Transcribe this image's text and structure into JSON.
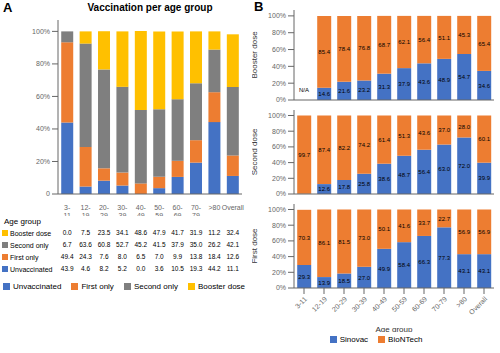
{
  "chart_data": [
    {
      "type": "bar",
      "stacked": true,
      "panel": "A",
      "title": "Vaccination per age group",
      "xlabel": "Age group",
      "categories": [
        "3-\n11",
        "12-\n19",
        "20-\n29",
        "30-\n39",
        "40-\n49",
        "50-\n59",
        "60-\n69",
        "70-\n79",
        ">80",
        "Overall"
      ],
      "series": [
        {
          "name": "Unvaccinated",
          "color": "#4472C4",
          "values": [
            43.9,
            4.6,
            8.2,
            5.2,
            0.0,
            3.6,
            10.5,
            19.3,
            44.2,
            11.1
          ]
        },
        {
          "name": "First only",
          "color": "#ED7D31",
          "values": [
            49.4,
            24.3,
            7.6,
            8.0,
            6.5,
            7.0,
            9.9,
            13.8,
            18.4,
            12.6
          ]
        },
        {
          "name": "Second only",
          "color": "#7F7F7F",
          "values": [
            6.7,
            63.6,
            60.8,
            52.7,
            45.2,
            41.5,
            37.9,
            35.0,
            26.2,
            42.1
          ]
        },
        {
          "name": "Booster dose",
          "color": "#FFC000",
          "values": [
            0.0,
            7.5,
            23.5,
            34.1,
            48.6,
            47.9,
            41.7,
            31.9,
            11.2,
            32.4
          ]
        }
      ],
      "ylim": [
        0,
        107
      ],
      "yticks": [
        0,
        {
          "value": 20,
          "label": "20%"
        },
        {
          "value": 40,
          "label": "40%"
        },
        {
          "value": 60,
          "label": "60%"
        },
        {
          "value": 80,
          "label": "80%"
        },
        {
          "value": 100,
          "label": "100%"
        }
      ],
      "grid": false,
      "legend": "bottom",
      "table": {
        "rows": [
          {
            "name": "Booster dose",
            "values": [
              0.0,
              7.5,
              23.5,
              34.1,
              48.6,
              47.9,
              41.7,
              31.9,
              11.2,
              32.4
            ],
            "value_labels": [
              "0.0",
              "7.5",
              "23.5",
              "34.1",
              "48.6",
              "47.9",
              "41.7",
              "31.9",
              "11.2",
              "32.4"
            ]
          },
          {
            "name": "Second only",
            "values": [
              6.7,
              63.6,
              60.8,
              52.7,
              45.2,
              41.5,
              37.9,
              35.0,
              26.2,
              42.1
            ],
            "value_labels": [
              "6.7",
              "63.6",
              "60.8",
              "52.7",
              "45.2",
              "41.5",
              "37.9",
              "35.0",
              "26.2",
              "42.1"
            ]
          },
          {
            "name": "First only",
            "values": [
              49.4,
              24.3,
              7.6,
              8.0,
              6.5,
              7.0,
              9.9,
              13.8,
              18.4,
              12.6
            ],
            "value_labels": [
              "49.4",
              "24.3",
              "7.6",
              "8.0",
              "6.5",
              "7.0",
              "9.9",
              "13.8",
              "18.4",
              "12.6"
            ]
          },
          {
            "name": "Unvaccinated",
            "values": [
              43.9,
              4.6,
              8.2,
              5.2,
              0.0,
              3.6,
              10.5,
              19.3,
              44.2,
              11.1
            ],
            "value_labels": [
              "43.9",
              "4.6",
              "8.2",
              "5.2",
              "0.0",
              "3.6",
              "10.5",
              "19.3",
              "44.2",
              "11.1"
            ]
          }
        ]
      }
    },
    {
      "type": "bar",
      "stacked": true,
      "panel": "B",
      "ylabel": "Booster dose",
      "tick_labels": "y",
      "data_labels": true,
      "categories": [
        "3-11",
        "12-19",
        "20-29",
        "30-39",
        "40-49",
        "50-59",
        "60-69",
        "70-79",
        ">80",
        "Overall"
      ],
      "series": [
        {
          "color": "#4472C4",
          "values": [
            0.0,
            14.6,
            21.6,
            23.2,
            31.3,
            37.9,
            43.6,
            48.9,
            54.7,
            34.6
          ],
          "value_labels": [
            null,
            "14.6",
            "21.6",
            "23.2",
            "31.3",
            "37.9",
            "43.6",
            "48.9",
            "54.7",
            "34.6"
          ]
        },
        {
          "color": "#ED7D31",
          "values": [
            0.0,
            85.4,
            78.4,
            76.8,
            68.7,
            62.1,
            56.4,
            51.1,
            45.3,
            65.4
          ],
          "value_labels": [
            null,
            "85.4",
            "78.4",
            "76.8",
            "68.7",
            "62.1",
            "56.4",
            "51.1",
            "45.3",
            "65.4"
          ]
        }
      ],
      "annotations": [
        {
          "text": "N/A",
          "x": "3-11",
          "y": 3
        }
      ],
      "ylim": [
        0,
        107
      ],
      "yticks": [
        {
          "value": 0,
          "label": "0%"
        },
        {
          "value": 20,
          "label": "20%"
        },
        {
          "value": 40,
          "label": "40%"
        },
        {
          "value": 60,
          "label": "60%"
        },
        {
          "value": 80,
          "label": "80%"
        },
        {
          "value": 100,
          "label": "100%"
        }
      ],
      "grid": false
    },
    {
      "type": "bar",
      "stacked": true,
      "ylabel": "Second dose",
      "tick_labels": "y",
      "data_labels": true,
      "categories": [
        "3-11",
        "12-19",
        "20-29",
        "30-39",
        "40-49",
        "50-59",
        "60-69",
        "70-79",
        ">80",
        "Overall"
      ],
      "series": [
        {
          "color": "#4472C4",
          "values": [
            0.3,
            12.6,
            17.8,
            25.8,
            38.6,
            48.7,
            56.4,
            63.0,
            72.0,
            39.9
          ],
          "value_labels": [
            null,
            "12.6",
            "17.8",
            "25.8",
            "38.6",
            "48.7",
            "56.4",
            "63.0",
            "72.0",
            "39.9"
          ]
        },
        {
          "color": "#ED7D31",
          "values": [
            99.7,
            87.4,
            82.2,
            74.2,
            61.4,
            51.3,
            43.6,
            37.0,
            28.0,
            60.1
          ],
          "value_labels": [
            "99.7",
            "87.4",
            "82.2",
            "74.2",
            "61.4",
            "51.3",
            "43.6",
            "37.0",
            "28.0",
            "60.1"
          ]
        }
      ],
      "ylim": [
        0,
        107
      ],
      "yticks": [
        {
          "value": 0,
          "label": "0%"
        },
        {
          "value": 20,
          "label": "20%"
        },
        {
          "value": 40,
          "label": "40%"
        },
        {
          "value": 60,
          "label": "60%"
        },
        {
          "value": 80,
          "label": "80%"
        },
        {
          "value": 100,
          "label": "100%"
        }
      ],
      "grid": false
    },
    {
      "type": "bar",
      "stacked": true,
      "ylabel": "First dose",
      "xlabel": "Age group",
      "data_labels": true,
      "categories": [
        "3-11",
        "12-19",
        "20-29",
        "30-39",
        "40-49",
        "50-59",
        "60-69",
        "70-79",
        ">80",
        "Overall"
      ],
      "series": [
        {
          "name": "Sinovac",
          "color": "#4472C4",
          "values": [
            29.3,
            13.9,
            18.5,
            27.0,
            49.9,
            58.4,
            66.3,
            77.3,
            43.1,
            43.1
          ],
          "value_labels": [
            "29.3",
            "13.9",
            "18.5",
            "27.0",
            "49.9",
            "58.4",
            "66.3",
            "77.3",
            "43.1",
            "43.1"
          ]
        },
        {
          "name": "BioNTech",
          "color": "#ED7D31",
          "values": [
            70.3,
            86.1,
            81.5,
            73.0,
            50.1,
            41.6,
            33.7,
            22.7,
            56.9,
            56.9
          ],
          "value_labels": [
            "70.3",
            "86.1",
            "81.5",
            "73.0",
            "50.1",
            "41.6",
            "33.7",
            "22.7",
            "56.9",
            "56.9"
          ]
        }
      ],
      "ylim": [
        0,
        107
      ],
      "yticks": [
        {
          "value": 0,
          "label": "0%"
        },
        {
          "value": 20,
          "label": "20%"
        },
        {
          "value": 40,
          "label": "40%"
        },
        {
          "value": 60,
          "label": "60%"
        },
        {
          "value": 80,
          "label": "80%"
        },
        {
          "value": 100,
          "label": "100%"
        }
      ],
      "grid": false,
      "legend": "bottom"
    }
  ]
}
